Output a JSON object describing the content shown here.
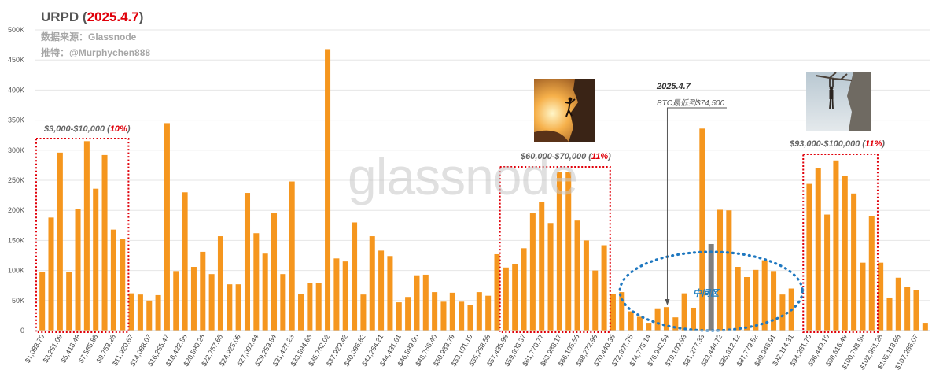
{
  "header": {
    "title_main": "URPD (",
    "title_date": "2025.4.7",
    "title_close": ")",
    "source": "数据来源：Glassnode",
    "twitter": "推特：@Murphychen888"
  },
  "watermark": "glassnode",
  "annotations": {
    "box1": {
      "range": "$3,000-$10,000",
      "pct": "10%"
    },
    "box2": {
      "range": "$60,000-$70,000",
      "pct": "11%"
    },
    "box3": {
      "range": "$93,000-$100,000",
      "pct": "11%"
    },
    "date_note": "2025.4.7",
    "low_note": "BTC最低到$74,500",
    "middle_zone": "中间区"
  },
  "colors": {
    "bar": "#f5961e",
    "highlight_bar": "#7f7f7f",
    "box": "#e0000a",
    "ellipse": "#1f78c0",
    "grid": "#e6e6e6"
  },
  "chart_data": {
    "type": "bar",
    "ylim": [
      0,
      500000
    ],
    "yticks": [
      "0",
      "50K",
      "100K",
      "150K",
      "200K",
      "250K",
      "300K",
      "350K",
      "400K",
      "450K",
      "500K"
    ],
    "xtick_labels": [
      "$1,083.70",
      "$3,251.09",
      "$5,418.49",
      "$7,585.88",
      "$9,753.28",
      "$11,920.67",
      "$14,088.07",
      "$16,255.47",
      "$18,422.86",
      "$20,590.26",
      "$22,757.65",
      "$24,925.05",
      "$27,092.44",
      "$29,259.84",
      "$31,427.23",
      "$33,594.63",
      "$35,762.02",
      "$37,929.42",
      "$40,096.82",
      "$42,264.21",
      "$44,431.61",
      "$46,599.00",
      "$48,766.40",
      "$50,933.79",
      "$53,101.19",
      "$55,268.58",
      "$57,435.98",
      "$59,603.37",
      "$61,770.77",
      "$63,938.17",
      "$66,105.56",
      "$68,272.96",
      "$70,440.35",
      "$72,607.75",
      "$74,775.14",
      "$76,942.54",
      "$79,109.93",
      "$81,277.33",
      "$83,444.72",
      "$85,612.12",
      "$87,779.52",
      "$89,946.91",
      "$92,114.31",
      "$94,281.70",
      "$96,449.10",
      "$98,616.49",
      "$100,783.89",
      "$102,951.28",
      "$105,118.68",
      "$107,286.07"
    ],
    "values": [
      98000,
      188000,
      296000,
      98000,
      202000,
      315000,
      236000,
      292000,
      168000,
      153000,
      62000,
      60000,
      50000,
      59000,
      345000,
      99000,
      230000,
      106000,
      131000,
      94000,
      157000,
      77000,
      77000,
      229000,
      162000,
      128000,
      195000,
      94000,
      248000,
      61000,
      79000,
      79000,
      468000,
      120000,
      115000,
      180000,
      60000,
      157000,
      133000,
      124000,
      47000,
      56000,
      92000,
      93000,
      64000,
      48000,
      63000,
      48000,
      43000,
      64000,
      58000,
      127000,
      105000,
      110000,
      137000,
      195000,
      214000,
      179000,
      264000,
      264000,
      183000,
      150000,
      100000,
      142000,
      61000,
      64000,
      32000,
      23000,
      13000,
      37000,
      39000,
      22000,
      62000,
      38000,
      336000,
      144000,
      201000,
      200000,
      106000,
      89000,
      101000,
      117000,
      99000,
      60000,
      70000,
      0,
      244000,
      270000,
      193000,
      283000,
      257000,
      228000,
      113000,
      190000,
      113000,
      55000,
      88000,
      72000,
      67000,
      13000
    ],
    "highlight_index": 75
  }
}
